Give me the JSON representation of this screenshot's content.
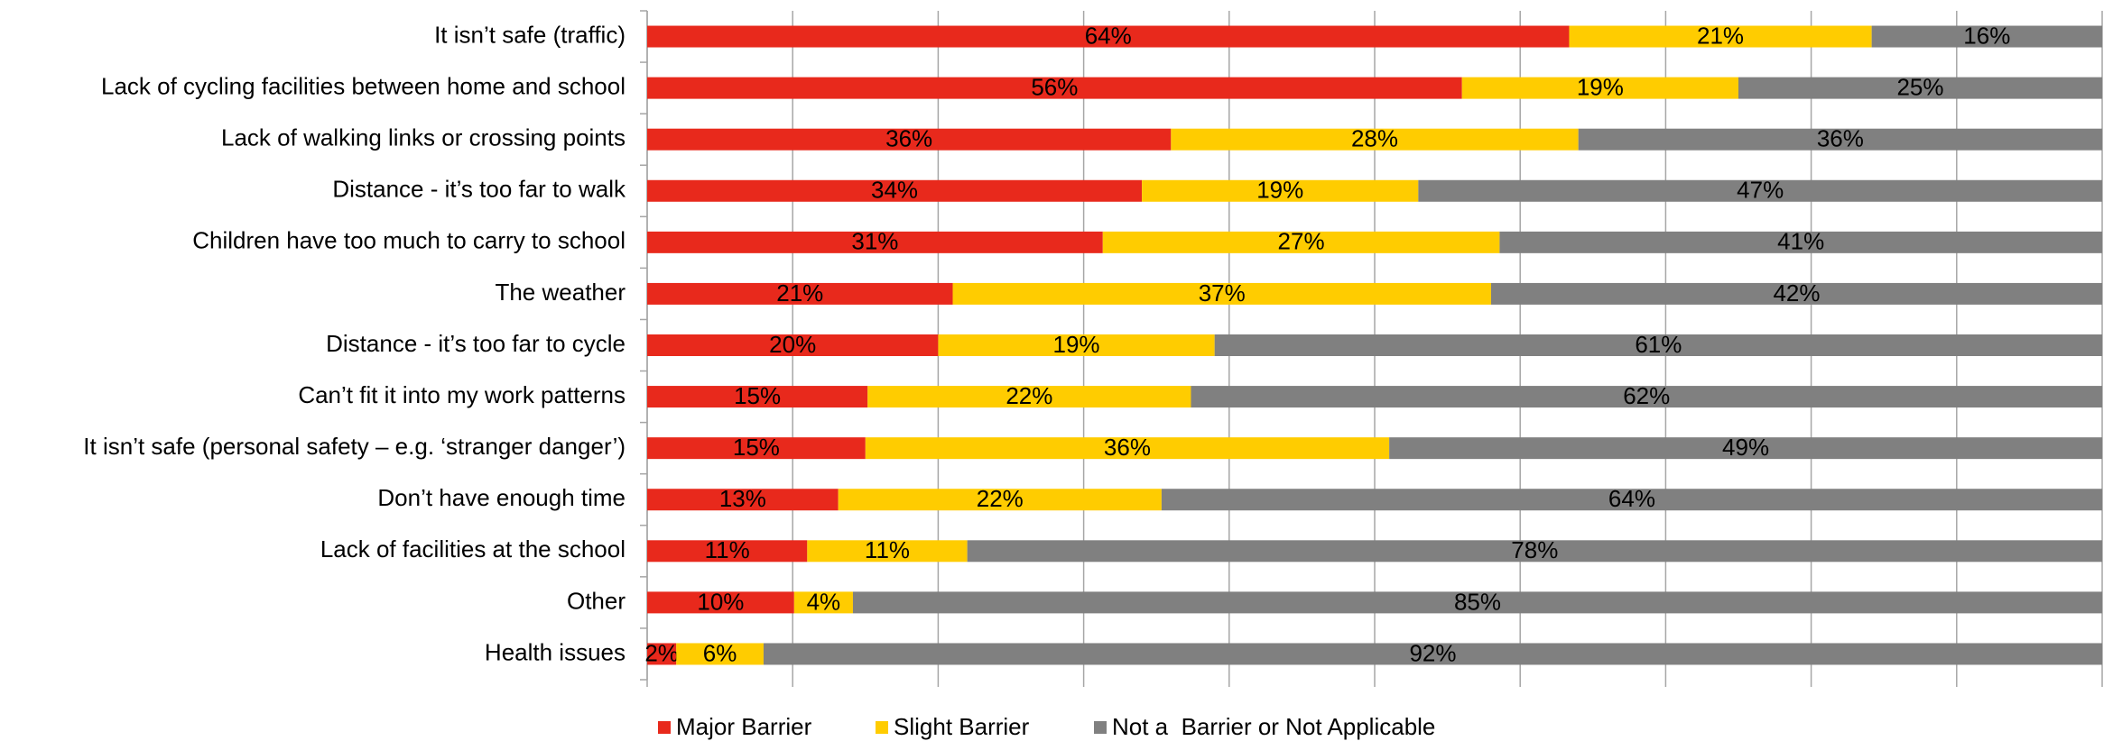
{
  "chart_data": {
    "type": "bar",
    "orientation": "horizontal",
    "stacked": "percent",
    "categories": [
      "It isn’t safe (traffic)",
      "Lack of cycling facilities between home and school",
      "Lack of walking links or crossing points",
      "Distance - it’s too far to walk",
      "Children have too much to carry to school",
      "The weather",
      "Distance - it’s too far to cycle",
      "Can’t fit it into my work patterns",
      "It isn’t safe (personal safety – e.g. ‘stranger danger’)",
      "Don’t have enough time",
      "Lack of facilities at the school",
      "Other",
      "Health issues"
    ],
    "series": [
      {
        "name": "Major Barrier",
        "color": "#e8291c",
        "values": [
          64,
          56,
          36,
          34,
          31,
          21,
          20,
          15,
          15,
          13,
          11,
          10,
          2
        ],
        "value_labels": [
          "64%",
          "56%",
          "36%",
          "34%",
          "31%",
          "21%",
          "20%",
          "15%",
          "15%",
          "13%",
          "11%",
          "10%",
          "2%"
        ]
      },
      {
        "name": "Slight Barrier",
        "color": "#ffcc00",
        "values": [
          21,
          19,
          28,
          19,
          27,
          37,
          19,
          22,
          36,
          22,
          11,
          4,
          6
        ],
        "value_labels": [
          "21%",
          "19%",
          "28%",
          "19%",
          "27%",
          "37%",
          "19%",
          "22%",
          "36%",
          "22%",
          "11%",
          "4%",
          "6%"
        ]
      },
      {
        "name": "Not a  Barrier or Not Applicable",
        "color": "#808080",
        "values": [
          16,
          25,
          36,
          47,
          41,
          42,
          61,
          62,
          49,
          64,
          78,
          85,
          92
        ],
        "value_labels": [
          "16%",
          "25%",
          "36%",
          "47%",
          "41%",
          "42%",
          "61%",
          "62%",
          "49%",
          "64%",
          "78%",
          "85%",
          "92%"
        ]
      }
    ],
    "xlim": [
      0,
      100
    ],
    "gridlines": [
      0,
      10,
      20,
      30,
      40,
      50,
      60,
      70,
      80,
      90,
      100
    ],
    "grid": true,
    "legend": "bottom"
  }
}
